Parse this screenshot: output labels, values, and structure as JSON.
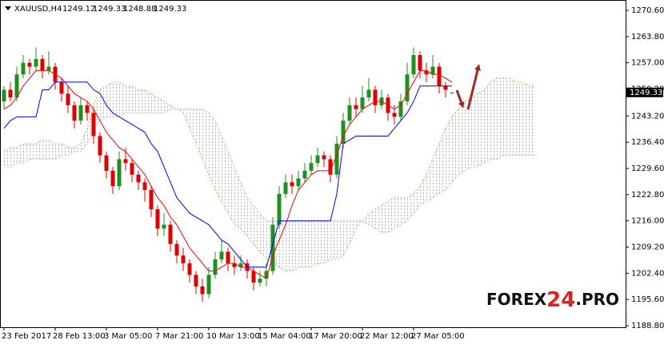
{
  "chart_data": {
    "type": "candlestick",
    "symbol": "XAUUSD,H4",
    "categories": [
      "23 Feb 2017",
      null,
      null,
      null,
      null,
      null,
      null,
      null,
      "28 Feb 13:00",
      null,
      null,
      null,
      null,
      null,
      null,
      null,
      "3 Mar 05:00",
      null,
      null,
      null,
      null,
      null,
      null,
      null,
      "7 Mar 21:00",
      null,
      null,
      null,
      null,
      null,
      null,
      null,
      "10 Mar 13:00",
      null,
      null,
      null,
      null,
      null,
      null,
      null,
      "15 Mar 04:00",
      null,
      null,
      null,
      null,
      null,
      null,
      null,
      "17 Mar 20:00",
      null,
      null,
      null,
      null,
      null,
      null,
      null,
      "22 Mar 12:00",
      null,
      null,
      null,
      null,
      null,
      null,
      null,
      "27 Mar 05:00",
      null,
      null,
      null,
      null,
      null,
      null,
      null,
      null,
      null,
      null,
      null,
      null,
      null,
      null,
      null,
      null,
      null,
      null,
      null
    ],
    "open": [
      1247,
      1250,
      1248,
      1254,
      1257,
      1256,
      1258,
      1255,
      1256,
      1252,
      1249,
      1246,
      1242,
      1246,
      1244,
      1238,
      1233,
      1229,
      1225,
      1232,
      1231,
      1228,
      1226,
      1224,
      1219,
      1214,
      1215,
      1210,
      1207,
      1205,
      1202,
      1199,
      1197,
      1202,
      1206,
      1208,
      1205,
      1204,
      1205,
      1203,
      1200,
      1201,
      1203,
      1215,
      1223,
      1226,
      1225,
      1227,
      1229,
      1231,
      1233,
      1232,
      1228,
      1236,
      1242,
      1246,
      1245,
      1248,
      1250,
      1246,
      1248,
      1244,
      1243,
      1247,
      1254,
      1259,
      1255,
      1254,
      1256,
      1251,
      1249.12,
      null,
      null,
      null,
      null,
      null,
      null,
      null,
      null,
      null,
      null,
      null,
      null,
      null
    ],
    "high": [
      1251,
      1252,
      1256,
      1259,
      1258,
      1261,
      1259,
      1260,
      1257,
      1253,
      1251,
      1247,
      1248,
      1247,
      1245,
      1239,
      1234,
      1230,
      1234,
      1235,
      1232,
      1229,
      1227,
      1225,
      1220,
      1218,
      1216,
      1211,
      1209,
      1206,
      1203,
      1201,
      1204,
      1208,
      1211,
      1209,
      1207,
      1207,
      1206,
      1204,
      1203,
      1205,
      1217,
      1225,
      1228,
      1228,
      1229,
      1231,
      1233,
      1235,
      1234,
      1233,
      1238,
      1244,
      1248,
      1248,
      1251,
      1253,
      1251,
      1250,
      1249,
      1246,
      1249,
      1257,
      1261,
      1260,
      1257,
      1259,
      1257,
      1252,
      1249.33,
      null,
      null,
      null,
      null,
      null,
      null,
      null,
      null,
      null,
      null,
      null,
      null,
      null
    ],
    "low": [
      1245,
      1247,
      1247,
      1253,
      1254,
      1255,
      1253,
      1254,
      1250,
      1247,
      1244,
      1240,
      1241,
      1242,
      1236,
      1231,
      1227,
      1223,
      1224,
      1229,
      1226,
      1224,
      1221,
      1217,
      1212,
      1212,
      1208,
      1205,
      1203,
      1200,
      1197,
      1195,
      1196,
      1201,
      1205,
      1203,
      1202,
      1203,
      1201,
      1198,
      1199,
      1199,
      1202,
      1214,
      1222,
      1223,
      1224,
      1226,
      1228,
      1230,
      1230,
      1226,
      1227,
      1235,
      1241,
      1243,
      1244,
      1247,
      1244,
      1245,
      1242,
      1241,
      1242,
      1246,
      1253,
      1253,
      1252,
      1253,
      1249,
      1248,
      1248.88,
      null,
      null,
      null,
      null,
      null,
      null,
      null,
      null,
      null,
      null,
      null,
      null,
      null
    ],
    "close": [
      1250,
      1248,
      1254,
      1257,
      1256,
      1258,
      1255,
      1256,
      1252,
      1249,
      1246,
      1242,
      1246,
      1244,
      1238,
      1233,
      1229,
      1225,
      1232,
      1231,
      1228,
      1226,
      1224,
      1219,
      1214,
      1215,
      1210,
      1207,
      1205,
      1202,
      1199,
      1197,
      1202,
      1206,
      1208,
      1205,
      1204,
      1205,
      1203,
      1200,
      1201,
      1203,
      1215,
      1223,
      1226,
      1225,
      1227,
      1229,
      1231,
      1233,
      1232,
      1228,
      1236,
      1242,
      1246,
      1245,
      1248,
      1250,
      1246,
      1248,
      1244,
      1243,
      1247,
      1254,
      1259,
      1255,
      1254,
      1256,
      1251,
      1250,
      1249.33,
      null,
      null,
      null,
      null,
      null,
      null,
      null,
      null,
      null,
      null,
      null,
      null,
      null
    ],
    "up_color": "#1f8f1f",
    "down_color": "#e00000",
    "lines": [
      {
        "color": "#ff0000",
        "values": [
          1245,
          1246,
          1248,
          1251,
          1253,
          1255,
          1255,
          1255,
          1254,
          1253,
          1251,
          1249,
          1248,
          1247,
          1245,
          1242,
          1239,
          1237,
          1235,
          1234,
          1232,
          1230,
          1228,
          1225,
          1222,
          1220,
          1217,
          1215,
          1212,
          1209,
          1207,
          1205,
          1203,
          1203,
          1204,
          1205,
          1205,
          1204,
          1204,
          1203,
          1202,
          1201,
          1207,
          1211,
          1215,
          1220,
          1224,
          1226,
          1228,
          1229,
          1229,
          1229,
          1233,
          1238,
          1241,
          1243,
          1245,
          1246,
          1247,
          1247,
          1246,
          1245,
          1246,
          1249,
          1252,
          1255,
          1255,
          1254,
          1254,
          1253,
          1252,
          null,
          null,
          null,
          null,
          null,
          null,
          null,
          null,
          null,
          null,
          null,
          null,
          null
        ]
      },
      {
        "color": "#0000ff",
        "values": [
          1240,
          1242,
          1243,
          1243,
          1243,
          1243,
          1250,
          1250,
          1252,
          1252,
          1252,
          1252,
          1252,
          1252,
          1250,
          1249,
          1246,
          1244,
          1243,
          1242,
          1241,
          1240,
          1239,
          1236,
          1234,
          1230,
          1226,
          1222,
          1220,
          1218,
          1217,
          1216,
          1215,
          1213,
          1211,
          1210,
          1208,
          1206,
          1204,
          1204,
          1204,
          1204,
          1210,
          1216,
          1216,
          1216,
          1216,
          1216,
          1216,
          1216,
          1216,
          1216,
          1223,
          1236,
          1237,
          1238,
          1238,
          1238,
          1238,
          1238,
          1238,
          1240,
          1242,
          1244,
          1247,
          1251,
          1251,
          1251,
          1251,
          1251,
          1251,
          null,
          null,
          null,
          null,
          null,
          null,
          null,
          null,
          null,
          null,
          null,
          null,
          null
        ]
      }
    ],
    "cloud": {
      "a": [
        1234,
        1235,
        1235,
        1236,
        1236,
        1236,
        1237,
        1237,
        1236,
        1236,
        1235,
        1235,
        1236,
        1240,
        1246,
        1250,
        1251,
        1252,
        1252,
        1251,
        1251,
        1250,
        1250,
        1249,
        1248,
        1247,
        1246,
        1245,
        1244,
        1240,
        1236,
        1232,
        1228,
        1224,
        1221,
        1218,
        1215,
        1214,
        1212,
        1210,
        1208,
        1206,
        1205,
        1204,
        1203,
        1203,
        1204,
        1204,
        1204,
        1205,
        1205,
        1206,
        1206,
        1207,
        1210,
        1214,
        1216,
        1218,
        1219,
        1220,
        1221,
        1222,
        1222,
        1222,
        1223,
        1225,
        1228,
        1232,
        1236,
        1240,
        1243,
        1245,
        1247,
        1248,
        1249,
        1250,
        1252,
        1253,
        1253,
        1253,
        1252,
        1252,
        1251,
        1251
      ],
      "b": [
        1230,
        1230,
        1231,
        1231,
        1232,
        1232,
        1232,
        1232,
        1232,
        1233,
        1233,
        1234,
        1234,
        1236,
        1240,
        1242,
        1243,
        1243,
        1243,
        1244,
        1244,
        1244,
        1244,
        1244,
        1244,
        1244,
        1245,
        1245,
        1245,
        1245,
        1245,
        1245,
        1244,
        1242,
        1238,
        1234,
        1230,
        1226,
        1222,
        1220,
        1218,
        1216,
        1216,
        1216,
        1216,
        1216,
        1216,
        1216,
        1216,
        1216,
        1216,
        1216,
        1216,
        1216,
        1216,
        1216,
        1216,
        1215,
        1214,
        1213,
        1213,
        1214,
        1215,
        1216,
        1218,
        1220,
        1221,
        1222,
        1223,
        1224,
        1226,
        1228,
        1229,
        1230,
        1230,
        1231,
        1232,
        1232,
        1233,
        1233,
        1233,
        1233,
        1233,
        1233
      ],
      "colors": [
        "#f4a460",
        "#c0b0d8"
      ]
    },
    "ylim": [
      1188.4,
      1273.3
    ],
    "yticks": [
      {
        "value": 1270.6,
        "label": "1270.60"
      },
      {
        "value": 1263.8,
        "label": "1263.80"
      },
      {
        "value": 1257,
        "label": "1257.00"
      },
      {
        "value": 1250.2,
        "label": "1250.20"
      },
      {
        "value": 1243.2,
        "label": "1243.20"
      },
      {
        "value": 1236.4,
        "label": "1236.40"
      },
      {
        "value": 1229.6,
        "label": "1229.60"
      },
      {
        "value": 1222.8,
        "label": "1222.80"
      },
      {
        "value": 1216,
        "label": "1216.00"
      },
      {
        "value": 1209.2,
        "label": "1209.20"
      },
      {
        "value": 1202.4,
        "label": "1202.40"
      },
      {
        "value": 1195.6,
        "label": "1195.60"
      },
      {
        "value": 1188.8,
        "label": "1188.80"
      }
    ],
    "grid": false,
    "watermark": [
      {
        "text": "FOREX",
        "color": "#111111"
      },
      {
        "text": "24",
        "color": "#e02020"
      },
      {
        "text": ".PRO",
        "color": "#111111"
      }
    ]
  }
}
